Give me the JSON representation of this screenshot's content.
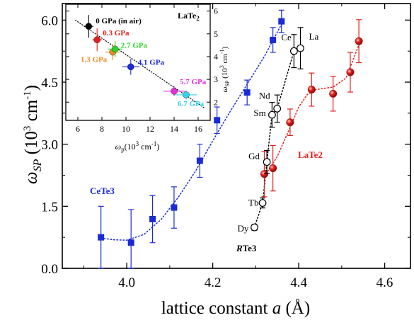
{
  "chart_data": [
    {
      "type": "scatter",
      "xlabel": "lattice constant a (Å)",
      "ylabel": "ω_SP (10^3 cm^-1)",
      "xlim": [
        3.85,
        4.66
      ],
      "ylim": [
        0,
        6.4
      ],
      "x_ticks": [
        "4.0",
        "4.2",
        "4.4",
        "4.6"
      ],
      "y_ticks": [
        "0.0",
        "1.5",
        "3.0",
        "4.5",
        "6.0"
      ],
      "series": [
        {
          "name": "CeTe3",
          "color": "#1a2bd6",
          "marker": "square-filled",
          "points": [
            {
              "x": 3.94,
              "y": 0.75,
              "err": 0.75
            },
            {
              "x": 4.01,
              "y": 0.62,
              "err": 0.8
            },
            {
              "x": 4.06,
              "y": 1.19,
              "err": 0.57
            },
            {
              "x": 4.11,
              "y": 1.47,
              "err": 0.5
            },
            {
              "x": 4.17,
              "y": 2.6,
              "err": 0.4
            },
            {
              "x": 4.21,
              "y": 3.58,
              "err": 0.32
            },
            {
              "x": 4.28,
              "y": 4.25,
              "err": 0.3
            },
            {
              "x": 4.34,
              "y": 5.52,
              "err": 0.3
            },
            {
              "x": 4.36,
              "y": 5.97,
              "err": 0.27
            }
          ],
          "fit": [
            [
              3.94,
              0.73
            ],
            [
              3.97,
              0.69
            ],
            [
              4.0,
              0.68
            ],
            [
              4.04,
              0.82
            ],
            [
              4.08,
              1.18
            ],
            [
              4.12,
              1.72
            ],
            [
              4.16,
              2.35
            ],
            [
              4.2,
              3.08
            ],
            [
              4.24,
              3.78
            ],
            [
              4.28,
              4.45
            ],
            [
              4.32,
              5.12
            ],
            [
              4.36,
              5.9
            ]
          ]
        },
        {
          "name": "LaTe2",
          "color": "#e0201b",
          "marker": "circle-filled",
          "points": [
            {
              "x": 4.32,
              "y": 2.28,
              "err": 0.55
            },
            {
              "x": 4.34,
              "y": 2.42,
              "err": 0.55
            },
            {
              "x": 4.38,
              "y": 3.53,
              "err": 0.32
            },
            {
              "x": 4.43,
              "y": 4.32,
              "err": 0.4
            },
            {
              "x": 4.48,
              "y": 4.22,
              "err": 0.42
            },
            {
              "x": 4.52,
              "y": 4.74,
              "err": 0.48
            },
            {
              "x": 4.54,
              "y": 5.49,
              "err": 0.52
            }
          ],
          "fit": [
            [
              4.32,
              2.22
            ],
            [
              4.35,
              2.7
            ],
            [
              4.38,
              3.4
            ],
            [
              4.4,
              3.9
            ],
            [
              4.42,
              4.2
            ],
            [
              4.44,
              4.32
            ],
            [
              4.48,
              4.38
            ],
            [
              4.51,
              4.6
            ],
            [
              4.54,
              5.4
            ]
          ]
        },
        {
          "name": "RTe3",
          "color": "#000000",
          "marker": "circle-open",
          "points": [
            {
              "label": "Dy",
              "x": 4.297,
              "y": 0.99,
              "err": 0.07
            },
            {
              "label": "Tb",
              "x": 4.316,
              "y": 1.58,
              "err": 0.12
            },
            {
              "label": "Gd",
              "x": 4.326,
              "y": 2.57,
              "err": 0.28
            },
            {
              "label": "Sm",
              "x": 4.338,
              "y": 3.71,
              "err": 0.3
            },
            {
              "label": "Nd",
              "x": 4.35,
              "y": 3.86,
              "err": 0.33
            },
            {
              "label": "Ce",
              "x": 4.389,
              "y": 5.25,
              "err": 0.4
            },
            {
              "label": "La",
              "x": 4.404,
              "y": 5.32,
              "err": 0.5
            }
          ]
        }
      ]
    },
    {
      "type": "scatter",
      "title": "LaTe2",
      "xlabel": "ω_p(10^3 cm^-1)",
      "ylabel": "ω_SP (10^3 cm^-1)",
      "xlim": [
        5,
        17
      ],
      "ylim": [
        1.2,
        6.3
      ],
      "x_ticks": [
        "6",
        "8",
        "10",
        "12",
        "14",
        "16"
      ],
      "y_ticks": [
        "2",
        "3",
        "4",
        "5",
        "6"
      ],
      "points": [
        {
          "label": "0 GPa (in air)",
          "x": 6.9,
          "y": 5.33,
          "color": "#000000",
          "xerr": 0.4,
          "yerr": 0.5
        },
        {
          "label": "0.3 GPa",
          "x": 7.6,
          "y": 4.74,
          "color": "#e0201b",
          "xerr": 0.4,
          "yerr": 0.5
        },
        {
          "label": "1.3 GPa",
          "x": 8.9,
          "y": 4.2,
          "color": "#f28a22",
          "xerr": 0.6,
          "yerr": 0.35
        },
        {
          "label": "2.7 GPa",
          "x": 9.1,
          "y": 4.33,
          "color": "#2bd42b",
          "xerr": 0.6,
          "yerr": 0.35
        },
        {
          "label": "4.1 GPa",
          "x": 10.4,
          "y": 3.55,
          "color": "#1a2bd6",
          "xerr": 0.7,
          "yerr": 0.35
        },
        {
          "label": "5.7 GPa",
          "x": 14.0,
          "y": 2.48,
          "color": "#e72fe0",
          "xerr": 0.9,
          "yerr": 0.22
        },
        {
          "label": "6.7 GPa",
          "x": 15.0,
          "y": 2.32,
          "color": "#35d3e8",
          "xerr": 0.9,
          "yerr": 0.2
        }
      ],
      "fit": [
        [
          5.8,
          5.6
        ],
        [
          16.5,
          1.75
        ]
      ]
    }
  ],
  "annotations": {
    "main": {
      "cete3": "CeTe3",
      "late2": "LaTe2",
      "rte3_r": "R",
      "rte3_te": "Te3"
    }
  }
}
